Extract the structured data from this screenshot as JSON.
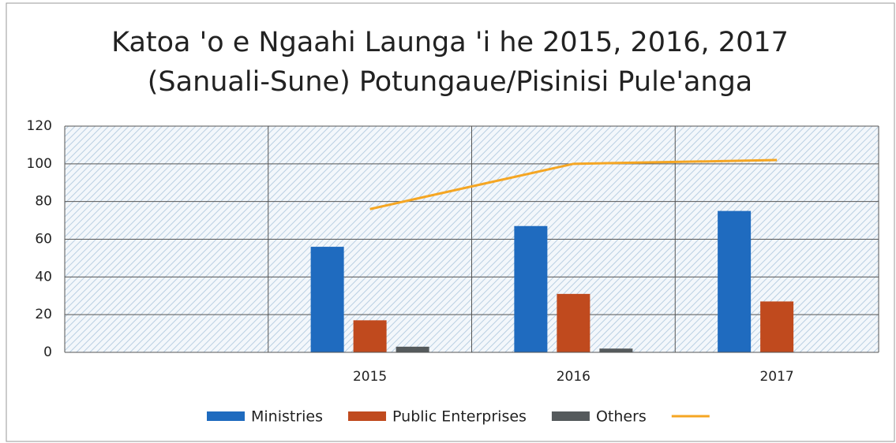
{
  "chart_data": {
    "type": "bar",
    "title": [
      "Katoa 'o e Ngaahi Launga 'i he 2015, 2016, 2017",
      "(Sanuali-Sune) Potungaue/Pisinisi Pule'anga"
    ],
    "categories": [
      null,
      "2015",
      "2016",
      "2017"
    ],
    "series": [
      {
        "name": "Ministries",
        "color": "#1f6bbf",
        "values": [
          null,
          56,
          67,
          75
        ]
      },
      {
        "name": "Public Enterprises",
        "color": "#c04a1e",
        "values": [
          null,
          17,
          31,
          27
        ]
      },
      {
        "name": "Others",
        "color": "#555a5c",
        "values": [
          null,
          3,
          2,
          0
        ]
      },
      {
        "type": "line",
        "color": "#f5a623",
        "values": [
          null,
          76,
          100,
          102
        ]
      }
    ],
    "ylim": [
      0,
      120
    ],
    "yticks": [
      0,
      20,
      40,
      60,
      80,
      100,
      120
    ],
    "grid": true,
    "legend": "bottom"
  }
}
